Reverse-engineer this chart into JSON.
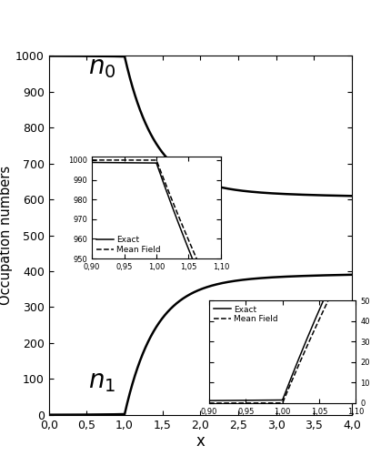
{
  "xlabel": "x",
  "ylabel": "Occupation numbers",
  "xlim": [
    0.0,
    4.0
  ],
  "ylim": [
    0,
    1000
  ],
  "yticks": [
    0,
    100,
    200,
    300,
    400,
    500,
    600,
    700,
    800,
    900,
    1000
  ],
  "xticks": [
    0.0,
    0.5,
    1.0,
    1.5,
    2.0,
    2.5,
    3.0,
    3.5,
    4.0
  ],
  "xtick_labels": [
    "0,0",
    "0,5",
    "1,0",
    "1,5",
    "2,0",
    "2,5",
    "3,0",
    "3,5",
    "4,0"
  ],
  "ytick_labels": [
    "0",
    "100",
    "200",
    "300",
    "400",
    "500",
    "600",
    "700",
    "800",
    "900",
    "1000"
  ],
  "inset1": {
    "ylim": [
      950,
      1002
    ],
    "yticks": [
      950,
      960,
      970,
      980,
      990,
      1000
    ],
    "xticks": [
      0.9,
      0.95,
      1.0,
      1.05,
      1.1
    ],
    "xtick_labels": [
      "0,90",
      "0,95",
      "1,00",
      "1,05",
      "1,10"
    ],
    "ytick_labels": [
      "950",
      "960",
      "970",
      "980",
      "990",
      "1000"
    ],
    "legend_exact": "Exact",
    "legend_mf": "Mean Field"
  },
  "inset2": {
    "ylim": [
      0,
      50
    ],
    "yticks": [
      0,
      10,
      20,
      30,
      40,
      50
    ],
    "xticks": [
      0.9,
      0.95,
      1.0,
      1.05,
      1.1
    ],
    "xtick_labels": [
      "0,90",
      "0,95",
      "1,00",
      "1,05",
      "1,10"
    ],
    "ytick_labels": [
      "0",
      "10",
      "20",
      "30",
      "40",
      "50"
    ],
    "legend_exact": "Exact",
    "legend_mf": "Mean Field"
  },
  "N": 1000,
  "background_color": "#ffffff"
}
